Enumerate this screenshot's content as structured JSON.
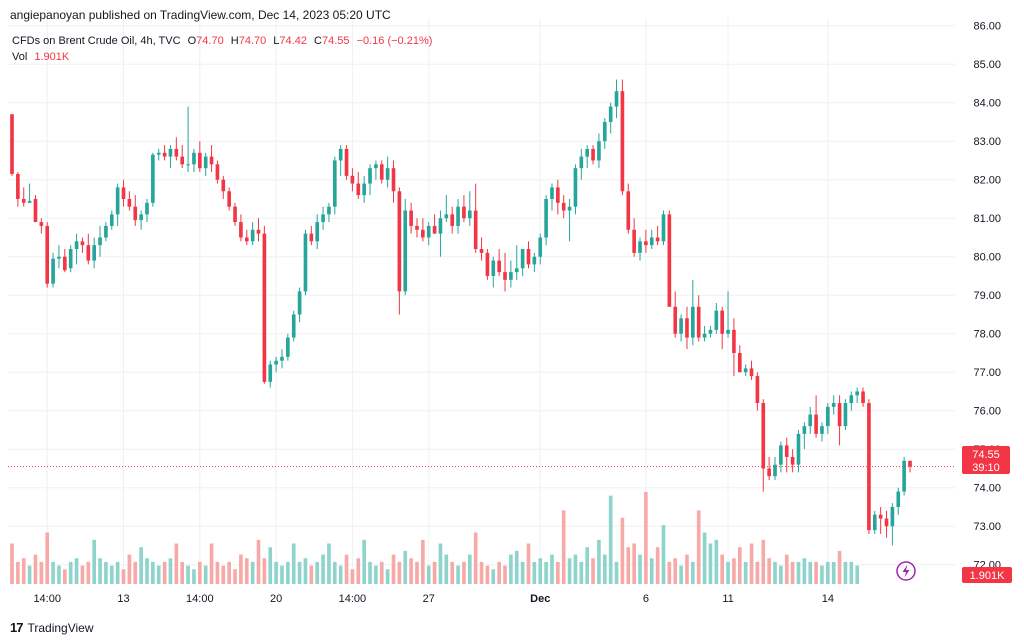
{
  "caption": "angiepanoyan published on TradingView.com, Dec 14, 2023 05:20 UTC",
  "legend": {
    "symbol": "CFDs on Brent Crude Oil, 4h, TVC",
    "o_label": "O",
    "o_value": "74.70",
    "h_label": "H",
    "h_value": "74.70",
    "l_label": "L",
    "l_value": "74.42",
    "c_label": "C",
    "c_value": "74.55",
    "change": "−0.16 (−0.21%)",
    "vol_label": "Vol",
    "vol_value": "1.901K"
  },
  "price_badge": {
    "price": "74.55",
    "countdown": "39:10"
  },
  "volume_badge": "1.901K",
  "footer": {
    "logo": "17",
    "brand": "TradingView"
  },
  "colors": {
    "up": "#26a69a",
    "down": "#f23645",
    "vol_up": "#8ed4cc",
    "vol_down": "#f7a9a7",
    "grid": "#eef0f3",
    "bolt": "#9c27b0"
  },
  "icons": {
    "bolt": "lightning-icon"
  },
  "chart_data": {
    "type": "candlestick",
    "title": "CFDs on Brent Crude Oil, 4h, TVC",
    "ylim": [
      71.5,
      86.2
    ],
    "y_ticks": [
      "72.00",
      "73.00",
      "74.00",
      "75.00",
      "76.00",
      "77.00",
      "78.00",
      "79.00",
      "80.00",
      "81.00",
      "82.00",
      "83.00",
      "84.00",
      "85.00",
      "86.00"
    ],
    "x_ticks": [
      {
        "label": "14:00",
        "index": 6,
        "major": false
      },
      {
        "label": "13",
        "index": 19,
        "major": false
      },
      {
        "label": "14:00",
        "index": 32,
        "major": false
      },
      {
        "label": "20",
        "index": 45,
        "major": false
      },
      {
        "label": "14:00",
        "index": 58,
        "major": false
      },
      {
        "label": "27",
        "index": 71,
        "major": false
      },
      {
        "label": "Dec",
        "index": 90,
        "major": true
      },
      {
        "label": "6",
        "index": 108,
        "major": false
      },
      {
        "label": "11",
        "index": 122,
        "major": false
      },
      {
        "label": "14",
        "index": 139,
        "major": false
      }
    ],
    "last_price": 74.55,
    "candles": [
      [
        83.7,
        83.7,
        82.1,
        82.15
      ],
      [
        82.15,
        82.2,
        81.3,
        81.5
      ],
      [
        81.5,
        81.8,
        81.3,
        81.4
      ],
      [
        81.4,
        81.9,
        81.4,
        81.45
      ],
      [
        81.5,
        81.6,
        80.9,
        80.9
      ],
      [
        80.9,
        81.0,
        80.6,
        80.8
      ],
      [
        80.8,
        80.9,
        79.2,
        79.3
      ],
      [
        79.3,
        80.1,
        79.2,
        79.95
      ],
      [
        79.95,
        80.3,
        79.7,
        80.0
      ],
      [
        80.0,
        80.2,
        79.6,
        79.65
      ],
      [
        79.7,
        80.3,
        79.6,
        80.2
      ],
      [
        80.2,
        80.6,
        79.8,
        80.4
      ],
      [
        80.4,
        80.5,
        80.1,
        80.3
      ],
      [
        80.3,
        80.6,
        79.8,
        79.9
      ],
      [
        79.9,
        80.5,
        79.7,
        80.3
      ],
      [
        80.3,
        80.8,
        80.0,
        80.5
      ],
      [
        80.5,
        80.9,
        80.4,
        80.8
      ],
      [
        80.8,
        81.2,
        80.7,
        81.1
      ],
      [
        81.1,
        81.9,
        80.8,
        81.8
      ],
      [
        81.8,
        82.0,
        81.3,
        81.5
      ],
      [
        81.5,
        81.7,
        81.2,
        81.3
      ],
      [
        81.3,
        81.6,
        80.8,
        80.95
      ],
      [
        80.95,
        81.2,
        80.7,
        81.1
      ],
      [
        81.1,
        81.5,
        80.9,
        81.4
      ],
      [
        81.4,
        82.7,
        81.3,
        82.65
      ],
      [
        82.65,
        82.8,
        82.5,
        82.7
      ],
      [
        82.7,
        82.9,
        82.5,
        82.6
      ],
      [
        82.6,
        82.9,
        82.3,
        82.8
      ],
      [
        82.8,
        83.1,
        82.5,
        82.6
      ],
      [
        82.6,
        82.9,
        82.3,
        82.4
      ],
      [
        82.4,
        83.9,
        82.2,
        82.4
      ],
      [
        82.4,
        82.8,
        82.2,
        82.7
      ],
      [
        82.7,
        83.0,
        82.2,
        82.3
      ],
      [
        82.3,
        82.7,
        82.1,
        82.6
      ],
      [
        82.6,
        82.9,
        82.2,
        82.4
      ],
      [
        82.4,
        82.5,
        81.9,
        82.0
      ],
      [
        82.0,
        82.1,
        81.5,
        81.7
      ],
      [
        81.7,
        81.8,
        81.2,
        81.3
      ],
      [
        81.3,
        81.4,
        80.8,
        80.9
      ],
      [
        80.9,
        81.1,
        80.4,
        80.5
      ],
      [
        80.5,
        80.7,
        80.3,
        80.4
      ],
      [
        80.4,
        80.9,
        80.3,
        80.7
      ],
      [
        80.7,
        81.0,
        80.4,
        80.6
      ],
      [
        80.6,
        80.8,
        76.7,
        76.75
      ],
      [
        76.75,
        77.3,
        76.6,
        77.2
      ],
      [
        77.2,
        77.4,
        77.0,
        77.3
      ],
      [
        77.3,
        77.6,
        77.1,
        77.4
      ],
      [
        77.4,
        78.0,
        77.3,
        77.9
      ],
      [
        77.9,
        78.6,
        77.8,
        78.5
      ],
      [
        78.5,
        79.2,
        78.3,
        79.1
      ],
      [
        79.1,
        80.7,
        79.0,
        80.6
      ],
      [
        80.6,
        80.8,
        80.3,
        80.4
      ],
      [
        80.4,
        81.1,
        80.2,
        80.9
      ],
      [
        80.9,
        81.3,
        80.7,
        81.1
      ],
      [
        81.1,
        81.4,
        80.9,
        81.3
      ],
      [
        81.3,
        82.6,
        81.1,
        82.5
      ],
      [
        82.5,
        82.9,
        82.1,
        82.8
      ],
      [
        82.8,
        82.9,
        82.0,
        82.1
      ],
      [
        82.1,
        82.3,
        81.7,
        81.9
      ],
      [
        81.9,
        82.2,
        81.5,
        81.6
      ],
      [
        81.6,
        82.1,
        81.4,
        81.9
      ],
      [
        81.9,
        82.4,
        81.6,
        82.3
      ],
      [
        82.3,
        82.5,
        82.0,
        82.4
      ],
      [
        82.4,
        82.5,
        81.9,
        82.0
      ],
      [
        82.0,
        82.6,
        81.8,
        82.3
      ],
      [
        82.3,
        82.5,
        81.4,
        81.7
      ],
      [
        81.7,
        81.8,
        78.5,
        79.1
      ],
      [
        79.1,
        81.5,
        79.0,
        81.2
      ],
      [
        81.2,
        81.4,
        80.6,
        80.8
      ],
      [
        80.8,
        81.0,
        80.5,
        80.7
      ],
      [
        80.7,
        81.0,
        80.4,
        80.5
      ],
      [
        80.5,
        80.9,
        80.3,
        80.8
      ],
      [
        80.8,
        81.1,
        80.6,
        80.6
      ],
      [
        80.6,
        81.2,
        80.0,
        81.0
      ],
      [
        81.0,
        81.6,
        80.9,
        81.1
      ],
      [
        81.1,
        81.3,
        80.6,
        80.8
      ],
      [
        80.8,
        81.5,
        80.6,
        81.3
      ],
      [
        81.3,
        81.6,
        80.9,
        81.0
      ],
      [
        81.0,
        81.7,
        80.8,
        81.2
      ],
      [
        81.2,
        81.9,
        80.1,
        80.2
      ],
      [
        80.2,
        80.5,
        79.9,
        80.1
      ],
      [
        80.1,
        80.2,
        79.4,
        79.5
      ],
      [
        79.5,
        80.0,
        79.2,
        79.9
      ],
      [
        79.9,
        80.2,
        79.5,
        79.6
      ],
      [
        79.6,
        80.1,
        79.1,
        79.4
      ],
      [
        79.4,
        79.9,
        79.2,
        79.6
      ],
      [
        79.6,
        80.3,
        79.4,
        79.7
      ],
      [
        79.7,
        80.2,
        79.5,
        80.2
      ],
      [
        80.2,
        80.4,
        79.7,
        79.8
      ],
      [
        79.8,
        80.1,
        79.6,
        80.0
      ],
      [
        80.0,
        80.6,
        79.8,
        80.5
      ],
      [
        80.5,
        81.6,
        80.3,
        81.5
      ],
      [
        81.5,
        81.9,
        81.2,
        81.8
      ],
      [
        81.8,
        82.0,
        81.1,
        81.4
      ],
      [
        81.4,
        81.6,
        81.0,
        81.2
      ],
      [
        81.2,
        81.5,
        80.4,
        81.3
      ],
      [
        81.3,
        82.4,
        81.1,
        82.3
      ],
      [
        82.3,
        82.8,
        82.0,
        82.6
      ],
      [
        82.6,
        82.9,
        82.3,
        82.8
      ],
      [
        82.8,
        82.9,
        82.4,
        82.5
      ],
      [
        82.5,
        83.2,
        82.3,
        83.0
      ],
      [
        83.0,
        83.6,
        82.8,
        83.5
      ],
      [
        83.5,
        84.0,
        83.2,
        83.9
      ],
      [
        83.9,
        84.6,
        83.6,
        84.3
      ],
      [
        84.3,
        84.6,
        81.6,
        81.7
      ],
      [
        81.7,
        81.9,
        80.6,
        80.7
      ],
      [
        80.7,
        81.0,
        80.0,
        80.1
      ],
      [
        80.1,
        80.5,
        79.9,
        80.4
      ],
      [
        80.4,
        80.7,
        80.1,
        80.3
      ],
      [
        80.3,
        80.7,
        80.2,
        80.5
      ],
      [
        80.5,
        80.8,
        80.3,
        80.4
      ],
      [
        80.4,
        81.2,
        80.3,
        81.1
      ],
      [
        81.1,
        81.2,
        78.7,
        78.7
      ],
      [
        78.7,
        79.1,
        77.9,
        78.0
      ],
      [
        78.0,
        78.5,
        77.8,
        78.4
      ],
      [
        78.4,
        78.7,
        77.6,
        77.9
      ],
      [
        77.9,
        79.4,
        77.7,
        78.7
      ],
      [
        78.7,
        79.0,
        77.8,
        77.9
      ],
      [
        77.9,
        78.2,
        77.8,
        78.0
      ],
      [
        78.0,
        78.2,
        77.9,
        78.1
      ],
      [
        78.1,
        78.8,
        78.0,
        78.6
      ],
      [
        78.6,
        78.7,
        77.6,
        78.0
      ],
      [
        78.0,
        79.1,
        77.9,
        78.1
      ],
      [
        78.1,
        78.4,
        76.9,
        77.5
      ],
      [
        77.5,
        77.7,
        77.0,
        77.0
      ],
      [
        77.0,
        77.2,
        76.9,
        77.1
      ],
      [
        77.1,
        77.3,
        76.8,
        76.9
      ],
      [
        76.9,
        77.0,
        76.0,
        76.2
      ],
      [
        76.2,
        76.3,
        73.9,
        74.5
      ],
      [
        74.5,
        74.8,
        74.2,
        74.3
      ],
      [
        74.3,
        74.8,
        74.2,
        74.6
      ],
      [
        74.6,
        75.2,
        74.4,
        75.1
      ],
      [
        75.1,
        75.3,
        74.4,
        74.8
      ],
      [
        74.8,
        75.0,
        74.4,
        74.6
      ],
      [
        74.6,
        75.5,
        74.4,
        75.4
      ],
      [
        75.4,
        75.7,
        75.0,
        75.6
      ],
      [
        75.6,
        76.1,
        75.4,
        75.9
      ],
      [
        75.9,
        76.4,
        75.3,
        75.4
      ],
      [
        75.4,
        75.7,
        75.2,
        75.6
      ],
      [
        75.6,
        76.2,
        75.4,
        76.1
      ],
      [
        76.1,
        76.4,
        75.9,
        76.2
      ],
      [
        76.2,
        76.4,
        75.1,
        75.6
      ],
      [
        75.6,
        76.3,
        75.5,
        76.2
      ],
      [
        76.2,
        76.5,
        76.0,
        76.4
      ],
      [
        76.4,
        76.6,
        76.2,
        76.5
      ],
      [
        76.5,
        76.6,
        76.1,
        76.2
      ],
      [
        76.2,
        76.3,
        72.8,
        72.9
      ],
      [
        72.9,
        73.4,
        72.8,
        73.3
      ],
      [
        73.3,
        73.5,
        72.8,
        73.2
      ],
      [
        73.2,
        73.4,
        72.7,
        73.0
      ],
      [
        73.0,
        73.6,
        72.5,
        73.5
      ],
      [
        73.5,
        74.0,
        73.3,
        73.9
      ],
      [
        73.9,
        74.8,
        73.8,
        74.7
      ],
      [
        74.7,
        74.7,
        74.4,
        74.55
      ]
    ],
    "volumes": [
      0.55,
      0.3,
      0.35,
      0.25,
      0.4,
      0.3,
      0.7,
      0.3,
      0.25,
      0.2,
      0.3,
      0.35,
      0.25,
      0.3,
      0.6,
      0.35,
      0.3,
      0.25,
      0.3,
      0.2,
      0.4,
      0.3,
      0.5,
      0.35,
      0.3,
      0.25,
      0.3,
      0.35,
      0.55,
      0.3,
      0.25,
      0.2,
      0.3,
      0.25,
      0.55,
      0.3,
      0.25,
      0.3,
      0.2,
      0.4,
      0.35,
      0.3,
      0.6,
      0.35,
      0.5,
      0.3,
      0.25,
      0.3,
      0.55,
      0.3,
      0.35,
      0.25,
      0.3,
      0.4,
      0.55,
      0.3,
      0.25,
      0.4,
      0.2,
      0.35,
      0.6,
      0.3,
      0.25,
      0.3,
      0.2,
      0.4,
      0.3,
      0.45,
      0.35,
      0.3,
      0.6,
      0.25,
      0.3,
      0.55,
      0.4,
      0.3,
      0.25,
      0.3,
      0.4,
      0.7,
      0.3,
      0.25,
      0.2,
      0.3,
      0.25,
      0.4,
      0.45,
      0.3,
      0.55,
      0.3,
      0.35,
      0.3,
      0.4,
      0.3,
      1.0,
      0.35,
      0.4,
      0.3,
      0.5,
      0.35,
      0.6,
      0.4,
      1.2,
      0.3,
      0.9,
      0.5,
      0.55,
      0.4,
      1.25,
      0.35,
      0.5,
      0.8,
      0.3,
      0.35,
      0.25,
      0.4,
      0.3,
      1.0,
      0.7,
      0.55,
      0.6,
      0.4,
      0.3,
      0.35,
      0.5,
      0.3,
      0.55,
      0.3,
      0.6,
      0.35,
      0.3,
      0.25,
      0.4,
      0.3,
      0.3,
      0.35,
      0.3,
      0.3,
      0.25,
      0.3,
      0.3,
      0.45,
      0.3,
      0.3,
      0.25
    ]
  }
}
